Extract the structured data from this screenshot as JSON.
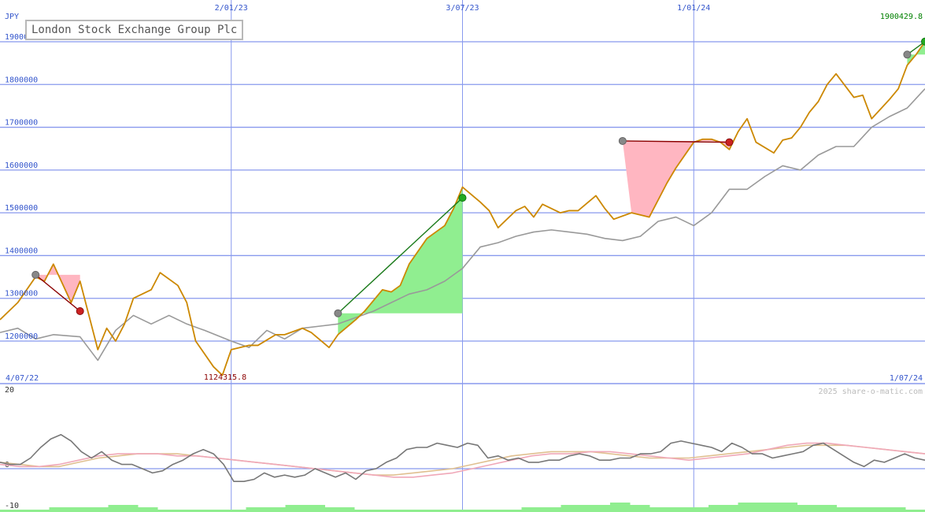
{
  "chart_data": [
    {
      "type": "line",
      "title": "London Stock Exchange Group Plc",
      "currency_label": "JPY",
      "x_date_range": [
        "2022-07-04",
        "2024-07-01"
      ],
      "x_tick_labels": [
        "4/07/22",
        "2/01/23",
        "3/07/23",
        "1/01/24",
        "1/07/24"
      ],
      "y_tick_labels": [
        "1200000",
        "1300000",
        "1400000",
        "1500000",
        "1600000",
        "1700000",
        "1800000",
        "1900000"
      ],
      "ylim": [
        1090000,
        1920000
      ],
      "max_label": "1900429.8",
      "min_label": "1124315.8",
      "grid": true,
      "colors": {
        "price": "#cc8800",
        "relative": "#999999",
        "grid": "#8899ee",
        "gain_fill": "#90ee90",
        "loss_fill": "#ffb6c1",
        "max_label": "#008000",
        "min_label": "#8b0000",
        "axis_label": "#3355cc"
      },
      "series": [
        {
          "key": "price",
          "x": [
            "2022-07-04",
            "2022-07-18",
            "2022-08-01",
            "2022-08-08",
            "2022-08-15",
            "2022-08-29",
            "2022-09-05",
            "2022-09-19",
            "2022-09-26",
            "2022-10-03",
            "2022-10-10",
            "2022-10-17",
            "2022-10-31",
            "2022-11-07",
            "2022-11-21",
            "2022-11-28",
            "2022-12-05",
            "2022-12-19",
            "2022-12-26",
            "2023-01-02",
            "2023-01-16",
            "2023-01-23",
            "2023-02-06",
            "2023-02-13",
            "2023-02-27",
            "2023-03-06",
            "2023-03-20",
            "2023-03-27",
            "2023-04-10",
            "2023-04-17",
            "2023-05-01",
            "2023-05-08",
            "2023-05-15",
            "2023-05-22",
            "2023-06-05",
            "2023-06-12",
            "2023-06-19",
            "2023-06-26",
            "2023-07-03",
            "2023-07-17",
            "2023-07-24",
            "2023-07-31",
            "2023-08-14",
            "2023-08-21",
            "2023-08-28",
            "2023-09-04",
            "2023-09-18",
            "2023-09-25",
            "2023-10-02",
            "2023-10-16",
            "2023-10-23",
            "2023-10-30",
            "2023-11-13",
            "2023-11-20",
            "2023-11-27",
            "2023-12-04",
            "2023-12-11",
            "2023-12-18",
            "2024-01-01",
            "2024-01-08",
            "2024-01-15",
            "2024-01-22",
            "2024-01-29",
            "2024-02-05",
            "2024-02-12",
            "2024-02-19",
            "2024-03-04",
            "2024-03-11",
            "2024-03-18",
            "2024-03-25",
            "2024-04-01",
            "2024-04-08",
            "2024-04-15",
            "2024-04-22",
            "2024-05-06",
            "2024-05-13",
            "2024-05-20",
            "2024-06-03",
            "2024-06-10",
            "2024-06-17",
            "2024-06-24",
            "2024-07-01"
          ],
          "y": [
            1250000,
            1290000,
            1350000,
            1340000,
            1380000,
            1290000,
            1340000,
            1180000,
            1230000,
            1200000,
            1240000,
            1300000,
            1320000,
            1360000,
            1330000,
            1290000,
            1200000,
            1140000,
            1120000,
            1180000,
            1190000,
            1190000,
            1215000,
            1215000,
            1230000,
            1220000,
            1185000,
            1215000,
            1250000,
            1270000,
            1320000,
            1315000,
            1330000,
            1380000,
            1440000,
            1455000,
            1470000,
            1510000,
            1560000,
            1525000,
            1505000,
            1465000,
            1505000,
            1515000,
            1490000,
            1520000,
            1500000,
            1505000,
            1505000,
            1540000,
            1510000,
            1485000,
            1500000,
            1495000,
            1490000,
            1530000,
            1570000,
            1605000,
            1665000,
            1672000,
            1672000,
            1665000,
            1648000,
            1690000,
            1720000,
            1665000,
            1640000,
            1670000,
            1675000,
            1700000,
            1735000,
            1760000,
            1800000,
            1825000,
            1770000,
            1775000,
            1720000,
            1765000,
            1790000,
            1845000,
            1870000,
            1900430
          ]
        },
        {
          "key": "relative",
          "x": [
            "2022-07-04",
            "2022-07-18",
            "2022-08-01",
            "2022-08-15",
            "2022-09-05",
            "2022-09-19",
            "2022-10-03",
            "2022-10-17",
            "2022-10-31",
            "2022-11-14",
            "2022-11-28",
            "2022-12-12",
            "2023-01-02",
            "2023-01-16",
            "2023-01-30",
            "2023-02-13",
            "2023-02-27",
            "2023-03-13",
            "2023-03-27",
            "2023-04-10",
            "2023-04-24",
            "2023-05-08",
            "2023-05-22",
            "2023-06-05",
            "2023-06-19",
            "2023-07-03",
            "2023-07-17",
            "2023-07-31",
            "2023-08-14",
            "2023-08-28",
            "2023-09-11",
            "2023-09-25",
            "2023-10-09",
            "2023-10-23",
            "2023-11-06",
            "2023-11-20",
            "2023-12-04",
            "2023-12-18",
            "2024-01-01",
            "2024-01-15",
            "2024-01-29",
            "2024-02-12",
            "2024-02-26",
            "2024-03-11",
            "2024-03-25",
            "2024-04-08",
            "2024-04-22",
            "2024-05-06",
            "2024-05-20",
            "2024-06-03",
            "2024-06-17",
            "2024-07-01"
          ],
          "y": [
            1220000,
            1230000,
            1205000,
            1215000,
            1210000,
            1155000,
            1225000,
            1260000,
            1240000,
            1260000,
            1240000,
            1225000,
            1200000,
            1185000,
            1225000,
            1205000,
            1230000,
            1235000,
            1240000,
            1255000,
            1270000,
            1290000,
            1310000,
            1320000,
            1340000,
            1370000,
            1420000,
            1430000,
            1445000,
            1455000,
            1460000,
            1455000,
            1450000,
            1440000,
            1435000,
            1445000,
            1480000,
            1490000,
            1470000,
            1500000,
            1555000,
            1555000,
            1585000,
            1610000,
            1600000,
            1635000,
            1655000,
            1655000,
            1700000,
            1725000,
            1745000,
            1790000
          ]
        }
      ],
      "trades": [
        {
          "entry": {
            "x": "2022-08-01",
            "y": 1355000
          },
          "exit": {
            "x": "2022-09-05",
            "y": 1270000
          },
          "result": "loss"
        },
        {
          "entry": {
            "x": "2023-03-27",
            "y": 1265000
          },
          "exit": {
            "x": "2023-07-03",
            "y": 1535000
          },
          "result": "gain"
        },
        {
          "entry": {
            "x": "2023-11-06",
            "y": 1668000
          },
          "exit": {
            "x": "2024-01-29",
            "y": 1665000
          },
          "result": "loss"
        },
        {
          "entry": {
            "x": "2024-06-17",
            "y": 1870000
          },
          "exit": {
            "x": "2024-07-01",
            "y": 1900430
          },
          "result": "gain"
        }
      ]
    },
    {
      "type": "line",
      "credit": "2025 share-o-matic.com",
      "y_tick_labels": [
        "20",
        "0",
        "-10"
      ],
      "ylim": [
        -10,
        20
      ],
      "colors": {
        "momentum": "#777777",
        "signal_fast": "#f0a8b8",
        "signal_slow": "#e0c090",
        "histogram": "#90ee90"
      },
      "series": [
        {
          "key": "momentum",
          "y": [
            3,
            2,
            2,
            5,
            10,
            14,
            16,
            13,
            8,
            5,
            8,
            4,
            2,
            2,
            0,
            -2,
            -1,
            2,
            4,
            7,
            9,
            7,
            2,
            -6,
            -6,
            -5,
            -2,
            -4,
            -3,
            -4,
            -3,
            0,
            -2,
            -4,
            -2,
            -5,
            -1,
            0,
            3,
            5,
            9,
            10,
            10,
            12,
            11,
            10,
            12,
            11,
            5,
            6,
            4,
            5,
            3,
            3,
            4,
            4,
            6,
            7,
            6,
            4,
            4,
            5,
            5,
            7,
            7,
            8,
            12,
            13,
            12,
            11,
            10,
            8,
            12,
            10,
            7,
            7,
            5,
            6,
            7,
            8,
            11,
            12,
            9,
            6,
            3,
            1,
            4,
            3,
            5,
            7,
            5,
            4
          ],
          "x_range": [
            "2022-07-04",
            "2024-07-01"
          ]
        },
        {
          "key": "signal_fast",
          "y": [
            2,
            1,
            1,
            2,
            4,
            6,
            7,
            7,
            7,
            6,
            6,
            5,
            4,
            3,
            2,
            1,
            0,
            -1,
            -2,
            -3,
            -4,
            -4,
            -3,
            -2,
            0,
            2,
            4,
            6,
            7,
            7,
            8,
            8,
            7,
            6,
            5,
            4,
            5,
            6,
            7,
            9,
            11,
            12,
            12,
            11,
            10,
            9,
            8,
            7
          ],
          "x_range": [
            "2022-07-04",
            "2024-07-01"
          ]
        },
        {
          "key": "signal_slow",
          "y": [
            3,
            2,
            1,
            1,
            3,
            5,
            6,
            7,
            7,
            7,
            6,
            5,
            4,
            3,
            2,
            1,
            0,
            -1,
            -2,
            -3,
            -3,
            -2,
            -1,
            0,
            2,
            4,
            6,
            7,
            8,
            8,
            8,
            7,
            6,
            5,
            5,
            5,
            6,
            7,
            8,
            9,
            10,
            11,
            11,
            11,
            10,
            9,
            8,
            7
          ],
          "x_range": [
            "2022-07-04",
            "2024-07-01"
          ]
        },
        {
          "key": "histogram",
          "y": [
            1,
            1,
            1,
            1,
            1,
            2,
            2,
            2,
            2,
            2,
            2,
            3,
            3,
            3,
            2,
            2,
            1,
            1,
            1,
            1,
            1,
            1,
            1,
            1,
            1,
            2,
            2,
            2,
            2,
            3,
            3,
            3,
            3,
            2,
            2,
            2,
            1,
            1,
            1,
            1,
            1,
            1,
            1,
            1,
            1,
            1,
            1,
            1,
            1,
            1,
            1,
            1,
            1,
            2,
            2,
            2,
            2,
            3,
            3,
            3,
            3,
            3,
            4,
            4,
            3,
            3,
            2,
            2,
            2,
            2,
            2,
            2,
            3,
            3,
            3,
            4,
            4,
            4,
            4,
            4,
            4,
            3,
            3,
            3,
            3,
            2,
            2,
            2,
            2,
            2,
            2,
            2,
            1,
            1
          ],
          "x_range": [
            "2022-07-04",
            "2024-07-01"
          ]
        }
      ]
    }
  ]
}
